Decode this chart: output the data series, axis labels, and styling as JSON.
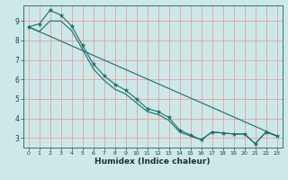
{
  "title": "",
  "xlabel": "Humidex (Indice chaleur)",
  "background_color": "#cde8e8",
  "grid_color_major": "#e8a0a0",
  "grid_color_minor": "#c8dede",
  "line_color": "#1a6e6a",
  "xlim": [
    -0.5,
    23.5
  ],
  "ylim": [
    2.5,
    9.8
  ],
  "yticks": [
    3,
    4,
    5,
    6,
    7,
    8,
    9
  ],
  "xticks": [
    0,
    1,
    2,
    3,
    4,
    5,
    6,
    7,
    8,
    9,
    10,
    11,
    12,
    13,
    14,
    15,
    16,
    17,
    18,
    19,
    20,
    21,
    22,
    23
  ],
  "line1_x": [
    0,
    1,
    2,
    3,
    4,
    5,
    6,
    7,
    8,
    9,
    10,
    11,
    12,
    13,
    14,
    15,
    16,
    17,
    18,
    19,
    20,
    21,
    22,
    23
  ],
  "line1_y": [
    8.7,
    8.85,
    9.55,
    9.3,
    8.75,
    7.75,
    6.8,
    6.2,
    5.75,
    5.45,
    5.0,
    4.5,
    4.35,
    4.05,
    3.4,
    3.15,
    2.9,
    3.3,
    3.25,
    3.2,
    3.2,
    2.7,
    3.3,
    3.1
  ],
  "line2_x": [
    0,
    23
  ],
  "line2_y": [
    8.7,
    3.1
  ],
  "line3_x": [
    0,
    1,
    2,
    3,
    4,
    5,
    6,
    7,
    8,
    9,
    10,
    11,
    12,
    13,
    14,
    15,
    16,
    17,
    18,
    19,
    20,
    21,
    22,
    23
  ],
  "line3_y": [
    8.7,
    8.45,
    9.0,
    9.0,
    8.5,
    7.55,
    6.55,
    5.95,
    5.5,
    5.25,
    4.8,
    4.35,
    4.2,
    3.9,
    3.3,
    3.1,
    2.9,
    3.3,
    3.25,
    3.2,
    3.2,
    2.7,
    3.3,
    3.1
  ]
}
